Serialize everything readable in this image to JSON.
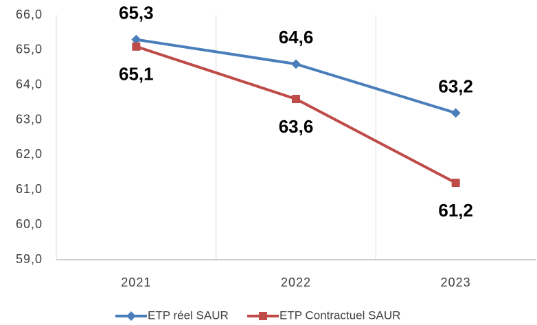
{
  "chart_data": {
    "type": "line",
    "categories": [
      "2021",
      "2022",
      "2023"
    ],
    "series": [
      {
        "name": "ETP réel SAUR",
        "color": "#4a7ebb",
        "marker": "diamond",
        "values": [
          65.3,
          64.6,
          63.2
        ],
        "value_labels": [
          "65,3",
          "64,6",
          "63,2"
        ],
        "label_position": "above"
      },
      {
        "name": "ETP Contractuel SAUR",
        "color": "#be4b48",
        "marker": "square",
        "values": [
          65.1,
          63.6,
          61.2
        ],
        "value_labels": [
          "65,1",
          "63,6",
          "61,2"
        ],
        "label_position": "below"
      }
    ],
    "ylim": [
      59,
      66
    ],
    "yticks": [
      {
        "value": 59,
        "label": "59,0"
      },
      {
        "value": 60,
        "label": "60,0"
      },
      {
        "value": 61,
        "label": "61,0"
      },
      {
        "value": 62,
        "label": "62,0"
      },
      {
        "value": 63,
        "label": "63,0"
      },
      {
        "value": 64,
        "label": "64,0"
      },
      {
        "value": 65,
        "label": "65,0"
      },
      {
        "value": 66,
        "label": "66,0"
      }
    ],
    "grid": true,
    "legend": "bottom"
  }
}
